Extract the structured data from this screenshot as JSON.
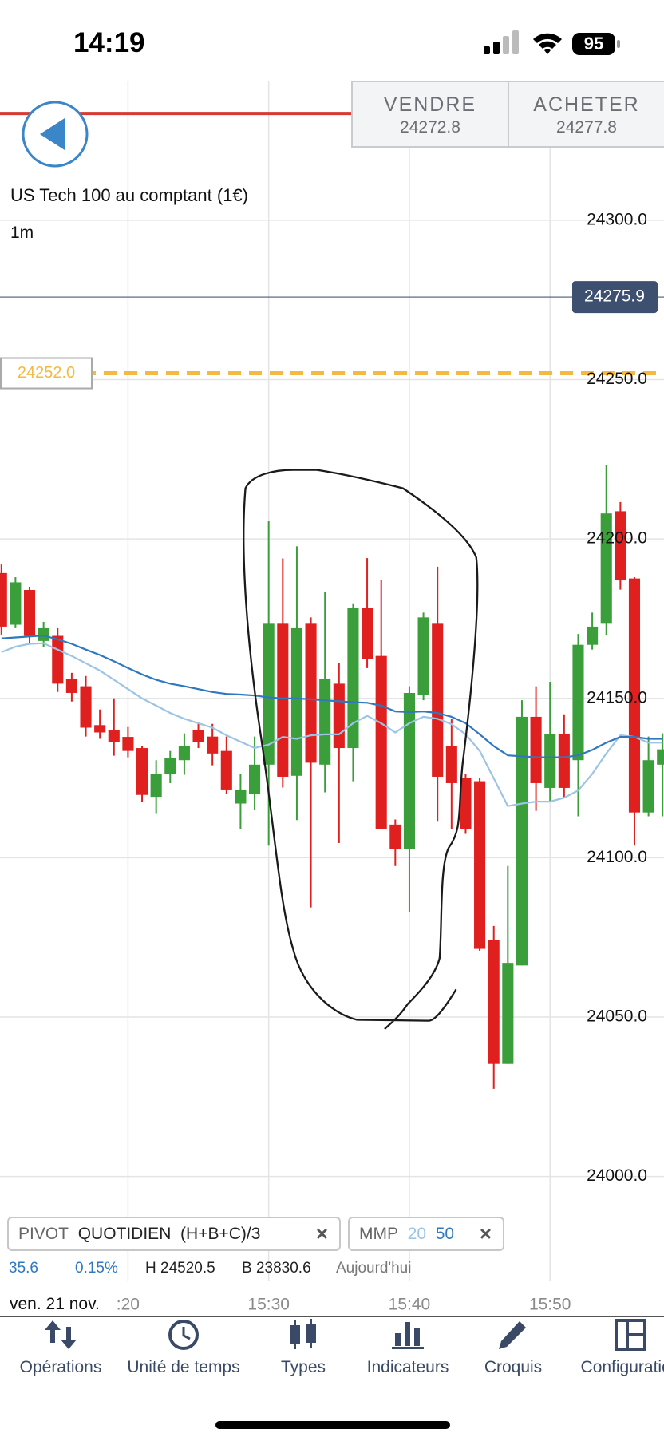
{
  "status_bar": {
    "time": "14:19",
    "battery": "95"
  },
  "trade_buttons": {
    "sell_label": "VENDRE",
    "sell_price": "24272.8",
    "buy_label": "ACHETER",
    "buy_price": "24277.8"
  },
  "instrument": {
    "name": "US Tech 100 au comptant (1€)",
    "timeframe": "1m"
  },
  "chart_data": {
    "type": "candlestick",
    "x": [
      11,
      12,
      13,
      14,
      15,
      16,
      17,
      18,
      19,
      20,
      21,
      22,
      23,
      24,
      25,
      26,
      27,
      28,
      29,
      30,
      31,
      32,
      33,
      34,
      35,
      36,
      37,
      38,
      39,
      40,
      41,
      42,
      43,
      44,
      45,
      46,
      47,
      48,
      49,
      50,
      51,
      52,
      53,
      54,
      55,
      56,
      57,
      58
    ],
    "open": [
      24189.3,
      24173.1,
      24184.0,
      24168.0,
      24169.6,
      24156.0,
      24153.8,
      24141.6,
      24140.0,
      24137.9,
      24134.4,
      24119.1,
      24126.3,
      24130.6,
      24140.0,
      24138.0,
      24133.5,
      24117.0,
      24120.0,
      24129.2,
      24173.4,
      24125.7,
      24173.4,
      24129.2,
      24154.6,
      24134.4,
      24178.3,
      24163.3,
      24110.4,
      24102.6,
      24151.0,
      24173.4,
      24135.0,
      24124.9,
      24124.0,
      24074.3,
      24035.3,
      24066.2,
      24144.2,
      24121.9,
      24138.7,
      24130.6,
      24166.8,
      24173.4,
      24208.7,
      24187.6,
      24114.2,
      24129.2
    ],
    "high": [
      24192,
      24188,
      24185,
      24174,
      24172,
      24158,
      24157,
      24146.5,
      24150,
      24141,
      24135,
      24130.6,
      24133.5,
      24139,
      24142,
      24142,
      24138,
      24126.3,
      24138,
      24205.8,
      24193.9,
      24197.7,
      24175.4,
      24183.5,
      24161,
      24179.8,
      24194,
      24187,
      24112,
      24153.8,
      24176.9,
      24191.3,
      24143.6,
      24126.3,
      24124.9,
      24078.6,
      24097.4,
      24149.4,
      24153.8,
      24155.2,
      24145,
      24170.2,
      24176.9,
      24223.1,
      24211.6,
      24188,
      24138,
      24139
    ],
    "low": [
      24170,
      24172,
      24167,
      24166,
      24152,
      24149,
      24138,
      24137.3,
      24132,
      24131.5,
      24117.6,
      24114,
      24123.4,
      24126,
      24134.4,
      24129,
      24120,
      24109,
      24115,
      24103.8,
      24122,
      24111.8,
      24084.4,
      24120.5,
      24104.6,
      24124,
      24159.5,
      24109,
      24097.4,
      24083,
      24149.4,
      24111.3,
      24109,
      24107.5,
      24070.8,
      24027.5,
      24035.3,
      24066.2,
      24114.7,
      24117.6,
      24119,
      24113,
      24165.3,
      24169.7,
      24184.1,
      24103.8,
      24113,
      24113
    ],
    "close": [
      24172.5,
      24186.4,
      24169.6,
      24172.0,
      24154.6,
      24151.7,
      24140.8,
      24139.3,
      24136.4,
      24133.5,
      24119.7,
      24126.3,
      24131.2,
      24135.0,
      24136.4,
      24132.7,
      24121.4,
      24121.4,
      24129.2,
      24173.4,
      24125.4,
      24172.0,
      24129.8,
      24156.1,
      24134.4,
      24178.3,
      24162.4,
      24109.0,
      24102.6,
      24151.7,
      24175.4,
      24125.4,
      24123.4,
      24109.0,
      24071.4,
      24035.3,
      24067.0,
      24144.2,
      24123.4,
      24138.7,
      24121.9,
      24166.8,
      24172.5,
      24208.0,
      24187.0,
      24114.2,
      24130.6,
      24134.0
    ],
    "up_color": "#3a9e3a",
    "down_color": "#e0201f",
    "series": [
      {
        "name": "20",
        "color": "#9cc4e4",
        "values": [
          24164.5,
          24166.2,
          24167.1,
          24167.3,
          24165.3,
          24163.3,
          24161.0,
          24158.7,
          24155.8,
          24152.9,
          24150.0,
          24147.7,
          24145.4,
          24143.6,
          24142.2,
          24140.8,
          24138.4,
          24136.4,
          24134.4,
          24135.5,
          24137.9,
          24137.3,
          24138.4,
          24138.7,
          24138.7,
          24142.2,
          24144.5,
          24142.2,
          24139.3,
          24142.2,
          24144.2,
          24143.6,
          24141.9,
          24138.7,
          24133.5,
          24124.9,
          24116.2,
          24117.0,
          24117.6,
          24117.6,
          24118.8,
          24121.1,
          24126.3,
          24132.7,
          24138.4,
          24137.9,
          24136.1,
          24136.1
        ]
      },
      {
        "name": "50",
        "color": "#2f78c0",
        "values": [
          24168.8,
          24169.1,
          24169.4,
          24169.7,
          24168.5,
          24167.1,
          24165.3,
          24163.6,
          24161.6,
          24159.5,
          24157.5,
          24155.8,
          24154.6,
          24153.8,
          24152.9,
          24152.0,
          24151.4,
          24151.2,
          24150.9,
          24150.3,
          24150.0,
          24150.0,
          24149.7,
          24149.4,
          24149.1,
          24148.8,
          24148.6,
          24147.7,
          24145.9,
          24145.7,
          24145.9,
          24145.4,
          24144.2,
          24142.2,
          24138.7,
          24135.0,
          24132.1,
          24131.8,
          24131.5,
          24131.5,
          24131.5,
          24132.1,
          24133.8,
          24136.1,
          24137.9,
          24137.9,
          24137.3,
          24137.3
        ]
      }
    ],
    "price_lines": [
      {
        "value": 24333.5,
        "color": "#d63a32",
        "style": "solid"
      },
      {
        "value": 24275.9,
        "color": "#3d5070",
        "style": "solid",
        "tag": "right"
      },
      {
        "value": 24252,
        "label": "24252.0",
        "color": "#f5b942",
        "style": "dashed",
        "tag": "left"
      }
    ],
    "xlim": [
      10.9,
      58.1
    ],
    "ylim": [
      23993.9,
      24343.8
    ],
    "xticks": [
      {
        "value": 20,
        "label": ":20"
      },
      {
        "value": 30,
        "label": "15:30"
      },
      {
        "value": 40,
        "label": "15:40"
      },
      {
        "value": 50,
        "label": "15:50"
      }
    ],
    "yticks": [
      {
        "value": 24000,
        "label": "24000.0"
      },
      {
        "value": 24050,
        "label": "24050.0"
      },
      {
        "value": 24100,
        "label": "24100.0"
      },
      {
        "value": 24150,
        "label": "24150.0"
      },
      {
        "value": 24200,
        "label": "24200.0"
      },
      {
        "value": 24250,
        "label": "24250.0"
      },
      {
        "value": 24300,
        "label": "24300.0"
      }
    ],
    "grid": true,
    "date_label": "ven. 21 nov."
  },
  "indicators": {
    "pivot": {
      "name": "PIVOT",
      "period": "QUOTIDIEN",
      "formula": "(H+B+C)/3",
      "close": "×"
    },
    "mmp": {
      "name": "MMP",
      "close": "×"
    },
    "stats": {
      "change": "35.6",
      "percent": "0.15%",
      "high": "H 24520.5",
      "low": "B 23830.6",
      "period": "Aujourd'hui"
    }
  },
  "toolbar": {
    "items": [
      "Opérations",
      "Unité de temps",
      "Types",
      "Indicateurs",
      "Croquis",
      "Configuration"
    ]
  }
}
